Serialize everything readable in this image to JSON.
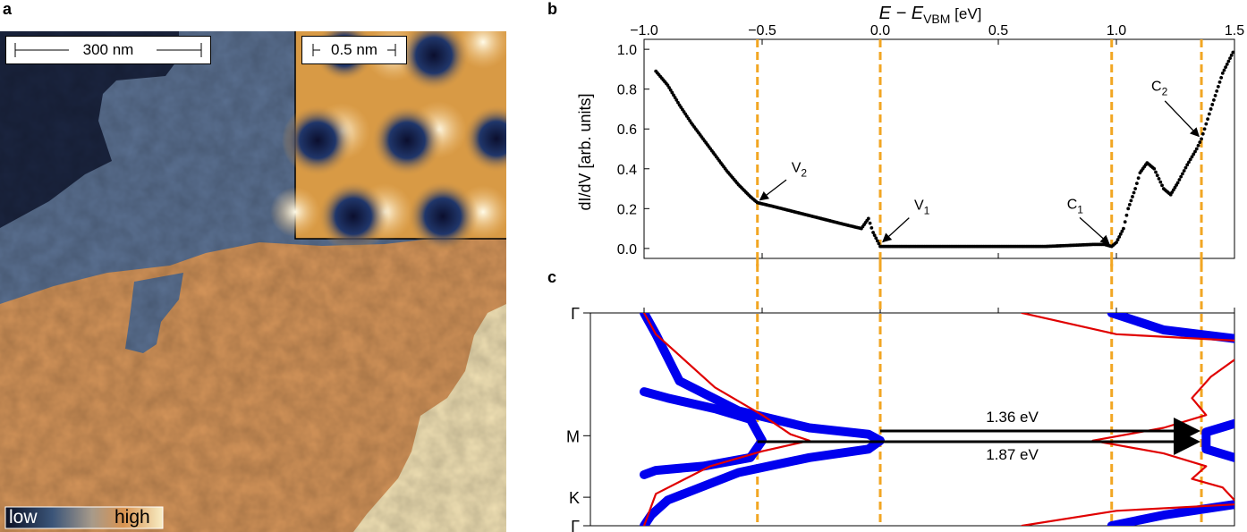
{
  "figure": {
    "panel_labels": {
      "a": "a",
      "b": "b",
      "c": "c"
    }
  },
  "panel_a": {
    "scalebar_main": "300 nm",
    "scalebar_inset": "0.5 nm",
    "colorbar_low": "low",
    "colorbar_high": "high",
    "colors": {
      "dark_step": "#1b2540",
      "blue_step": "#5b7192",
      "orange_step": "#d5955a",
      "light_step": "#f3e3b6"
    }
  },
  "chart_data": [
    {
      "type": "scatter",
      "title": "",
      "xlabel_main": "E − E",
      "xlabel_sub": "VBM",
      "xlabel_unit": " [eV]",
      "ylabel": "dI/dV [arb. units]",
      "xlim": [
        -1.0,
        1.5
      ],
      "ylim": [
        -0.05,
        1.05
      ],
      "xticks": [
        -1.0,
        -0.5,
        0.0,
        0.5,
        1.0,
        1.5
      ],
      "xtick_labels": [
        "−1.0",
        "−0.5",
        "0.0",
        "0.5",
        "1.0",
        "1.5"
      ],
      "yticks": [
        0.0,
        0.2,
        0.4,
        0.6,
        0.8,
        1.0
      ],
      "ytick_labels": [
        "0.0",
        "0.2",
        "0.4",
        "0.6",
        "0.8",
        "1.0"
      ],
      "dashed_lines_x": [
        -0.52,
        0.0,
        0.98,
        1.36
      ],
      "dashed_color": "#f2a623",
      "series": [
        {
          "name": "dI/dV spectrum",
          "x": [
            -0.95,
            -0.9,
            -0.85,
            -0.8,
            -0.75,
            -0.7,
            -0.65,
            -0.6,
            -0.55,
            -0.52,
            -0.45,
            -0.35,
            -0.25,
            -0.15,
            -0.08,
            -0.05,
            -0.03,
            0.0,
            0.1,
            0.3,
            0.5,
            0.7,
            0.9,
            0.95,
            0.98,
            1.0,
            1.03,
            1.05,
            1.08,
            1.1,
            1.13,
            1.16,
            1.2,
            1.23,
            1.26,
            1.3,
            1.34,
            1.36,
            1.4,
            1.45,
            1.5
          ],
          "y": [
            0.89,
            0.82,
            0.72,
            0.63,
            0.55,
            0.47,
            0.39,
            0.32,
            0.26,
            0.23,
            0.21,
            0.18,
            0.15,
            0.12,
            0.1,
            0.15,
            0.08,
            0.01,
            0.01,
            0.01,
            0.01,
            0.01,
            0.02,
            0.02,
            0.01,
            0.03,
            0.1,
            0.2,
            0.3,
            0.38,
            0.43,
            0.4,
            0.3,
            0.27,
            0.33,
            0.42,
            0.5,
            0.55,
            0.7,
            0.88,
            1.0
          ]
        }
      ],
      "annotations": [
        {
          "label": "V",
          "sub": "2",
          "x": -0.52,
          "y": 0.23
        },
        {
          "label": "V",
          "sub": "1",
          "x": 0.0,
          "y": 0.02
        },
        {
          "label": "C",
          "sub": "1",
          "x": 0.98,
          "y": 0.01
        },
        {
          "label": "C",
          "sub": "2",
          "x": 1.36,
          "y": 0.55
        }
      ]
    },
    {
      "type": "line",
      "title": "",
      "xlim": [
        -1.0,
        1.5
      ],
      "k_labels": [
        "Γ",
        "M",
        "K",
        "Γ"
      ],
      "k_positions": [
        0.0,
        0.577,
        0.866,
        1.0
      ],
      "series": [
        {
          "name": "valence band (blue)",
          "color": "#0000ee",
          "E": [
            -1.0,
            -0.95,
            -0.85,
            -0.6,
            -0.3,
            -0.05,
            0.0,
            -0.05,
            -0.3,
            -0.6,
            -0.9,
            -0.97,
            -1.0
          ],
          "k": [
            0.0,
            0.1,
            0.32,
            0.46,
            0.54,
            0.57,
            0.6,
            0.64,
            0.68,
            0.75,
            0.88,
            0.95,
            1.0
          ]
        },
        {
          "name": "valence band lower (blue)",
          "color": "#0000ee",
          "E": [
            -1.0,
            -0.9,
            -0.7,
            -0.55,
            -0.5,
            -0.55,
            -0.75,
            -0.95,
            -1.0
          ],
          "k": [
            0.37,
            0.4,
            0.45,
            0.5,
            0.6,
            0.68,
            0.72,
            0.74,
            0.76
          ]
        },
        {
          "name": "conduction band (blue)",
          "color": "#0000ee",
          "E": [
            0.98,
            1.2,
            1.5
          ],
          "k": [
            0.0,
            0.08,
            0.12
          ]
        },
        {
          "name": "conduction band (blue) lower",
          "color": "#0000ee",
          "E": [
            1.5,
            1.2,
            0.98
          ],
          "k": [
            0.9,
            0.95,
            1.0
          ]
        },
        {
          "name": "conduction minimum K (blue)",
          "color": "#0000ee",
          "E": [
            1.5,
            1.38,
            1.38,
            1.5
          ],
          "k": [
            0.52,
            0.56,
            0.64,
            0.68
          ]
        },
        {
          "name": "red band 1",
          "color": "#e00000",
          "E": [
            -1.0,
            -0.95,
            -0.7,
            -0.5,
            -0.38,
            -0.3,
            -0.5,
            -0.72,
            -0.95,
            -1.0
          ],
          "k": [
            0.0,
            0.1,
            0.35,
            0.48,
            0.57,
            0.6,
            0.65,
            0.72,
            0.85,
            1.0
          ]
        },
        {
          "name": "red band 2",
          "color": "#e00000",
          "E": [
            0.6,
            1.0,
            1.5
          ],
          "k": [
            0.0,
            0.1,
            0.13
          ]
        },
        {
          "name": "red band 3",
          "color": "#e00000",
          "E": [
            1.5,
            1.0,
            0.6
          ],
          "k": [
            0.9,
            0.93,
            1.0
          ]
        },
        {
          "name": "red band 4",
          "color": "#e00000",
          "E": [
            1.5,
            1.4,
            1.32,
            1.38,
            1.2,
            0.9,
            1.2,
            1.38,
            1.32,
            1.45,
            1.5
          ],
          "k": [
            0.22,
            0.3,
            0.4,
            0.48,
            0.54,
            0.6,
            0.66,
            0.72,
            0.78,
            0.82,
            0.88
          ]
        }
      ],
      "arrows": [
        {
          "label": "1.36 eV",
          "from_E": 0.0,
          "to_E": 1.36
        },
        {
          "label": "1.87 eV",
          "from_E": -0.52,
          "to_E": 1.36
        }
      ]
    }
  ]
}
